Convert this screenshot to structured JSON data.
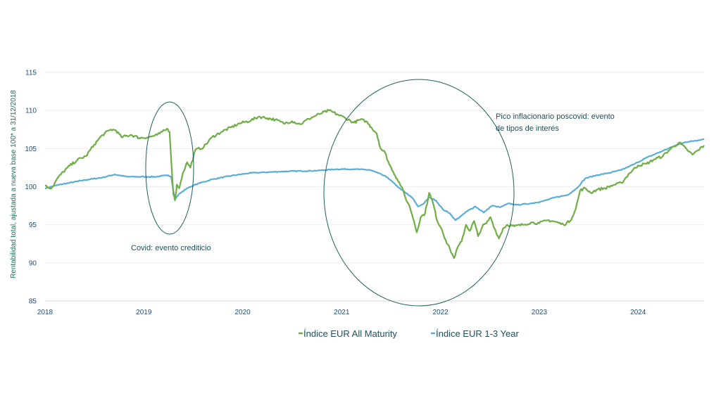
{
  "chart_data": {
    "type": "line",
    "title": "",
    "xlabel": "",
    "ylabel": "Rentabilidad total, ajustada a nueva base 100* a 31/12/2018",
    "x_ticks": [
      "2018",
      "2019",
      "2020",
      "2021",
      "2022",
      "2023",
      "2024"
    ],
    "xlim": [
      "2018-01-01",
      "2024-09-01"
    ],
    "y_ticks": [
      85,
      90,
      95,
      100,
      105,
      110,
      115
    ],
    "ylim": [
      85,
      115
    ],
    "grid": "horizontal",
    "legend_position": "bottom",
    "series": [
      {
        "name": "Índice EUR All Maturity",
        "color": "#70ad47",
        "points": [
          [
            "2018-01-01",
            100.1
          ],
          [
            "2018-01-25",
            99.8
          ],
          [
            "2018-02-20",
            101.3
          ],
          [
            "2018-03-25",
            102.5
          ],
          [
            "2018-04-30",
            103.5
          ],
          [
            "2018-06-01",
            104.0
          ],
          [
            "2018-07-01",
            105.5
          ],
          [
            "2018-08-01",
            106.8
          ],
          [
            "2018-09-01",
            107.5
          ],
          [
            "2018-09-20",
            107.4
          ],
          [
            "2018-10-10",
            106.5
          ],
          [
            "2018-11-15",
            106.8
          ],
          [
            "2018-12-15",
            106.4
          ],
          [
            "2019-01-20",
            106.5
          ],
          [
            "2019-02-20",
            106.8
          ],
          [
            "2019-03-10",
            107.2
          ],
          [
            "2019-03-30",
            107.6
          ],
          [
            "2019-04-06",
            107.2
          ],
          [
            "2019-04-13",
            103.0
          ],
          [
            "2019-04-20",
            99.0
          ],
          [
            "2019-04-26",
            98.2
          ],
          [
            "2019-05-03",
            100.3
          ],
          [
            "2019-05-12",
            99.8
          ],
          [
            "2019-05-25",
            101.8
          ],
          [
            "2019-06-10",
            103.2
          ],
          [
            "2019-06-22",
            102.5
          ],
          [
            "2019-07-10",
            104.8
          ],
          [
            "2019-08-10",
            105.2
          ],
          [
            "2019-09-10",
            106.5
          ],
          [
            "2019-10-15",
            107.2
          ],
          [
            "2019-11-20",
            107.8
          ],
          [
            "2019-12-20",
            108.3
          ],
          [
            "2020-02-01",
            108.7
          ],
          [
            "2020-03-01",
            109.2
          ],
          [
            "2020-04-01",
            109.0
          ],
          [
            "2020-05-01",
            108.8
          ],
          [
            "2020-06-01",
            108.3
          ],
          [
            "2020-07-01",
            108.6
          ],
          [
            "2020-08-01",
            108.2
          ],
          [
            "2020-09-01",
            108.9
          ],
          [
            "2020-10-15",
            109.6
          ],
          [
            "2020-11-15",
            110.0
          ],
          [
            "2020-12-15",
            109.5
          ],
          [
            "2021-01-15",
            109.0
          ],
          [
            "2021-02-15",
            108.4
          ],
          [
            "2021-03-10",
            108.8
          ],
          [
            "2021-04-01",
            108.6
          ],
          [
            "2021-04-20",
            107.8
          ],
          [
            "2021-05-10",
            107.0
          ],
          [
            "2021-05-25",
            105.0
          ],
          [
            "2021-06-10",
            104.5
          ],
          [
            "2021-06-25",
            103.0
          ],
          [
            "2021-07-10",
            102.0
          ],
          [
            "2021-07-25",
            101.0
          ],
          [
            "2021-08-10",
            100.0
          ],
          [
            "2021-08-25",
            98.5
          ],
          [
            "2021-09-10",
            97.3
          ],
          [
            "2021-09-25",
            95.5
          ],
          [
            "2021-10-05",
            94.0
          ],
          [
            "2021-10-20",
            96.0
          ],
          [
            "2021-11-05",
            96.5
          ],
          [
            "2021-11-20",
            99.2
          ],
          [
            "2021-12-05",
            97.8
          ],
          [
            "2021-12-20",
            95.5
          ],
          [
            "2022-01-05",
            94.5
          ],
          [
            "2022-01-20",
            93.0
          ],
          [
            "2022-02-05",
            91.8
          ],
          [
            "2022-02-20",
            90.6
          ],
          [
            "2022-03-05",
            92.0
          ],
          [
            "2022-03-20",
            92.8
          ],
          [
            "2022-04-05",
            95.0
          ],
          [
            "2022-04-20",
            94.2
          ],
          [
            "2022-05-05",
            95.5
          ],
          [
            "2022-05-20",
            93.5
          ],
          [
            "2022-06-05",
            94.8
          ],
          [
            "2022-06-20",
            95.2
          ],
          [
            "2022-07-05",
            96.0
          ],
          [
            "2022-07-20",
            94.5
          ],
          [
            "2022-08-05",
            93.2
          ],
          [
            "2022-08-20",
            94.5
          ],
          [
            "2022-09-05",
            95.0
          ],
          [
            "2022-10-01",
            94.8
          ],
          [
            "2022-11-01",
            95.0
          ],
          [
            "2022-12-01",
            95.3
          ],
          [
            "2023-01-01",
            95.2
          ],
          [
            "2023-02-01",
            95.6
          ],
          [
            "2023-03-01",
            95.4
          ],
          [
            "2023-04-01",
            95.0
          ],
          [
            "2023-04-25",
            95.5
          ],
          [
            "2023-05-15",
            97.0
          ],
          [
            "2023-06-01",
            99.5
          ],
          [
            "2023-06-20",
            99.8
          ],
          [
            "2023-07-10",
            99.2
          ],
          [
            "2023-08-01",
            99.6
          ],
          [
            "2023-09-01",
            99.8
          ],
          [
            "2023-10-01",
            100.2
          ],
          [
            "2023-11-01",
            100.5
          ],
          [
            "2023-12-01",
            101.8
          ],
          [
            "2024-01-01",
            102.8
          ],
          [
            "2024-02-01",
            103.0
          ],
          [
            "2024-03-01",
            103.6
          ],
          [
            "2024-04-01",
            104.0
          ],
          [
            "2024-05-01",
            105.0
          ],
          [
            "2024-06-01",
            105.8
          ],
          [
            "2024-07-01",
            104.8
          ],
          [
            "2024-07-20",
            104.2
          ],
          [
            "2024-08-10",
            104.8
          ],
          [
            "2024-09-01",
            105.4
          ]
        ]
      },
      {
        "name": "Índice EUR 1-3 Year",
        "color": "#5aaed6",
        "points": [
          [
            "2018-01-01",
            99.8
          ],
          [
            "2018-02-15",
            100.2
          ],
          [
            "2018-04-01",
            100.5
          ],
          [
            "2018-06-01",
            100.9
          ],
          [
            "2018-08-01",
            101.2
          ],
          [
            "2018-09-15",
            101.6
          ],
          [
            "2018-11-01",
            101.3
          ],
          [
            "2019-01-01",
            101.3
          ],
          [
            "2019-02-15",
            101.3
          ],
          [
            "2019-04-01",
            101.5
          ],
          [
            "2019-04-12",
            101.3
          ],
          [
            "2019-04-20",
            99.5
          ],
          [
            "2019-04-27",
            98.4
          ],
          [
            "2019-05-10",
            99.0
          ],
          [
            "2019-06-10",
            99.8
          ],
          [
            "2019-07-20",
            100.4
          ],
          [
            "2019-09-15",
            101.0
          ],
          [
            "2019-12-01",
            101.5
          ],
          [
            "2020-02-01",
            101.8
          ],
          [
            "2020-06-01",
            102.0
          ],
          [
            "2020-10-01",
            102.1
          ],
          [
            "2020-12-15",
            102.3
          ],
          [
            "2021-02-15",
            102.3
          ],
          [
            "2021-04-15",
            102.2
          ],
          [
            "2021-05-15",
            101.8
          ],
          [
            "2021-06-20",
            101.2
          ],
          [
            "2021-07-20",
            100.2
          ],
          [
            "2021-08-25",
            99.2
          ],
          [
            "2021-09-20",
            98.5
          ],
          [
            "2021-10-10",
            97.4
          ],
          [
            "2021-11-01",
            97.8
          ],
          [
            "2021-11-20",
            98.6
          ],
          [
            "2021-12-15",
            98.2
          ],
          [
            "2022-01-10",
            97.0
          ],
          [
            "2022-02-05",
            96.5
          ],
          [
            "2022-02-25",
            95.6
          ],
          [
            "2022-03-20",
            96.2
          ],
          [
            "2022-04-10",
            96.8
          ],
          [
            "2022-05-10",
            97.4
          ],
          [
            "2022-06-10",
            96.6
          ],
          [
            "2022-07-10",
            97.5
          ],
          [
            "2022-08-10",
            97.3
          ],
          [
            "2022-09-10",
            97.8
          ],
          [
            "2022-10-10",
            97.6
          ],
          [
            "2022-12-01",
            97.8
          ],
          [
            "2023-01-15",
            98.1
          ],
          [
            "2023-03-01",
            98.6
          ],
          [
            "2023-04-15",
            98.9
          ],
          [
            "2023-05-20",
            99.8
          ],
          [
            "2023-06-20",
            101.1
          ],
          [
            "2023-08-01",
            101.5
          ],
          [
            "2023-09-15",
            101.8
          ],
          [
            "2023-11-01",
            102.2
          ],
          [
            "2023-12-20",
            103.0
          ],
          [
            "2024-02-01",
            103.8
          ],
          [
            "2024-04-01",
            104.7
          ],
          [
            "2024-06-01",
            105.6
          ],
          [
            "2024-07-15",
            106.0
          ],
          [
            "2024-08-15",
            106.1
          ],
          [
            "2024-09-01",
            106.3
          ]
        ]
      }
    ],
    "annotations": [
      {
        "text_lines": [
          "Covid: evento crediticio"
        ]
      },
      {
        "text_lines": [
          "Pico inflacionario poscovid: evento",
          "de tipos de interés"
        ]
      }
    ]
  }
}
